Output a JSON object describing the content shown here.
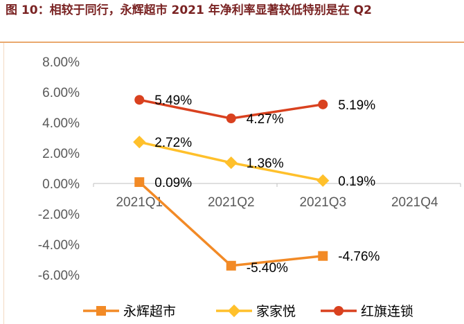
{
  "header": {
    "title": "图 10：相较于同行，永辉超市 2021 年净利率显著较低特别是在 Q2"
  },
  "chart_data": {
    "type": "line",
    "categories": [
      "2021Q1",
      "2021Q2",
      "2021Q3",
      "2021Q4"
    ],
    "y_ticks": [
      "8.00%",
      "6.00%",
      "4.00%",
      "2.00%",
      "0.00%",
      "-2.00%",
      "-4.00%",
      "-6.00%"
    ],
    "ylim": [
      -6,
      8
    ],
    "grid": false,
    "legend_position": "bottom",
    "series": [
      {
        "name": "永辉超市",
        "color": "#f28a26",
        "marker": "square",
        "values": [
          0.09,
          -5.4,
          -4.76,
          null
        ],
        "labels": [
          "0.09%",
          "-5.40%",
          "-4.76%",
          ""
        ]
      },
      {
        "name": "家家悦",
        "color": "#ffc02b",
        "marker": "diamond",
        "values": [
          2.72,
          1.36,
          0.19,
          null
        ],
        "labels": [
          "2.72%",
          "1.36%",
          "0.19%",
          ""
        ]
      },
      {
        "name": "红旗连锁",
        "color": "#d9411f",
        "marker": "circle",
        "values": [
          5.49,
          4.27,
          5.19,
          null
        ],
        "labels": [
          "5.49%",
          "4.27%",
          "5.19%",
          ""
        ]
      }
    ]
  }
}
